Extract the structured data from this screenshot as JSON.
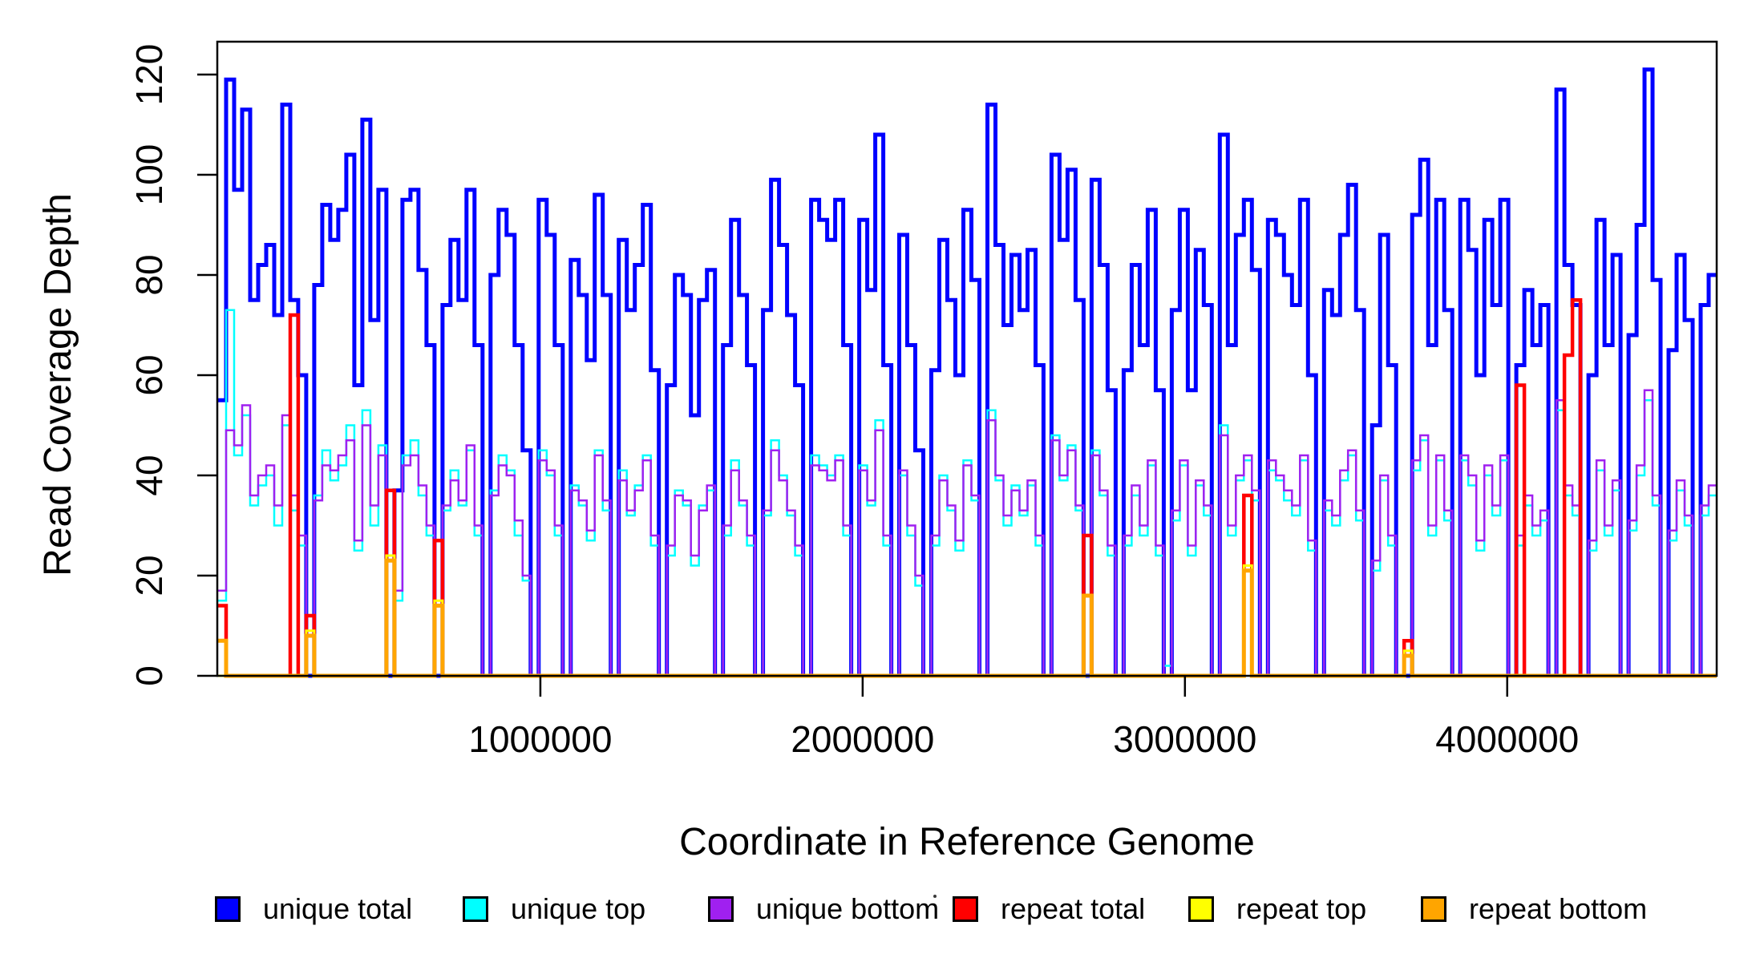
{
  "figure": {
    "background": "#ffffff",
    "text_color": "#000000"
  },
  "y_axis": {
    "title": "Read Coverage Depth",
    "ticks": [
      0,
      20,
      40,
      60,
      80,
      100,
      120
    ],
    "range": [
      0,
      126
    ]
  },
  "x_axis": {
    "title": "Coordinate in Reference Genome",
    "ticks": [
      1000000,
      2000000,
      3000000,
      4000000
    ],
    "tick_labels": [
      "1000000",
      "2000000",
      "3000000",
      "4000000"
    ],
    "range": [
      0,
      4650000
    ]
  },
  "legend": {
    "items": [
      {
        "label": "unique total",
        "color": "#0000FF"
      },
      {
        "label": "unique top",
        "color": "#00FFFF"
      },
      {
        "label": "unique bottom",
        "color": "#A020F0"
      },
      {
        "label": "repeat total",
        "color": "#FF0000"
      },
      {
        "label": "repeat top",
        "color": "#FFFF00"
      },
      {
        "label": "repeat bottom",
        "color": "#FFA500"
      }
    ]
  },
  "chart_data": {
    "type": "line",
    "step": true,
    "grid": false,
    "n_bins": 187,
    "bin_size": 24866,
    "x_start": 0,
    "xlabel": "Coordinate in Reference Genome",
    "ylabel": "Read Coverage Depth",
    "ylim": [
      0,
      126
    ],
    "xlim": [
      0,
      4650000
    ],
    "series": [
      {
        "name": "unique total",
        "color": "#0000FF",
        "lwd": 5,
        "values": [
          55,
          119,
          97,
          113,
          75,
          82,
          86,
          72,
          114,
          75,
          60,
          0,
          78,
          94,
          87,
          93,
          104,
          58,
          111,
          71,
          97,
          0,
          37,
          95,
          97,
          81,
          66,
          0,
          74,
          87,
          75,
          97,
          66,
          0,
          80,
          93,
          88,
          66,
          45,
          0,
          95,
          88,
          66,
          0,
          83,
          76,
          63,
          96,
          76,
          0,
          87,
          73,
          82,
          94,
          61,
          0,
          58,
          80,
          76,
          52,
          75,
          81,
          0,
          66,
          91,
          76,
          62,
          0,
          73,
          99,
          86,
          72,
          58,
          0,
          95,
          91,
          87,
          95,
          66,
          0,
          91,
          77,
          108,
          62,
          0,
          88,
          66,
          45,
          0,
          61,
          87,
          75,
          60,
          93,
          79,
          0,
          114,
          86,
          70,
          84,
          73,
          85,
          62,
          0,
          104,
          87,
          101,
          75,
          0,
          99,
          82,
          57,
          0,
          61,
          82,
          66,
          93,
          57,
          0,
          73,
          93,
          57,
          85,
          74,
          0,
          108,
          66,
          88,
          95,
          81,
          0,
          91,
          88,
          80,
          74,
          95,
          60,
          0,
          77,
          72,
          88,
          98,
          73,
          0,
          50,
          88,
          62,
          0,
          0,
          92,
          103,
          66,
          95,
          73,
          0,
          95,
          85,
          60,
          91,
          74,
          95,
          0,
          62,
          77,
          66,
          74,
          0,
          117,
          82,
          74,
          0,
          60,
          91,
          66,
          84,
          0,
          68,
          90,
          121,
          79,
          0,
          65,
          84,
          71,
          0,
          74,
          80
        ]
      },
      {
        "name": "unique top",
        "color": "#00FFFF",
        "lwd": 2.5,
        "values": [
          15,
          73,
          44,
          52,
          34,
          38,
          40,
          30,
          50,
          33,
          26,
          0,
          36,
          45,
          39,
          42,
          50,
          25,
          53,
          30,
          46,
          0,
          15,
          44,
          47,
          36,
          28,
          0,
          33,
          41,
          34,
          45,
          28,
          0,
          37,
          44,
          41,
          28,
          19,
          0,
          45,
          40,
          28,
          0,
          38,
          34,
          27,
          45,
          33,
          0,
          41,
          32,
          38,
          44,
          26,
          0,
          24,
          37,
          34,
          22,
          34,
          37,
          0,
          28,
          43,
          34,
          26,
          0,
          32,
          47,
          40,
          32,
          24,
          0,
          44,
          42,
          40,
          44,
          28,
          0,
          42,
          34,
          51,
          26,
          0,
          40,
          28,
          18,
          0,
          26,
          40,
          33,
          25,
          43,
          35,
          0,
          53,
          39,
          30,
          38,
          32,
          38,
          26,
          0,
          48,
          39,
          46,
          33,
          0,
          45,
          36,
          24,
          0,
          26,
          36,
          28,
          42,
          24,
          2,
          31,
          42,
          24,
          38,
          32,
          0,
          50,
          28,
          39,
          43,
          35,
          0,
          41,
          39,
          35,
          32,
          43,
          25,
          0,
          33,
          30,
          39,
          44,
          31,
          0,
          21,
          39,
          26,
          0,
          0,
          41,
          47,
          28,
          43,
          31,
          0,
          43,
          38,
          25,
          40,
          32,
          43,
          0,
          26,
          34,
          28,
          31,
          0,
          53,
          36,
          32,
          0,
          25,
          41,
          28,
          37,
          0,
          29,
          40,
          55,
          34,
          0,
          27,
          37,
          30,
          0,
          32,
          36
        ]
      },
      {
        "name": "unique bottom",
        "color": "#A020F0",
        "lwd": 2.5,
        "values": [
          17,
          49,
          46,
          54,
          36,
          40,
          42,
          34,
          52,
          36,
          28,
          0,
          35,
          42,
          41,
          44,
          47,
          27,
          50,
          34,
          44,
          0,
          17,
          42,
          44,
          38,
          30,
          0,
          34,
          39,
          35,
          46,
          30,
          0,
          36,
          42,
          40,
          31,
          20,
          0,
          43,
          41,
          30,
          0,
          37,
          35,
          29,
          44,
          35,
          0,
          39,
          33,
          37,
          43,
          28,
          0,
          26,
          36,
          35,
          24,
          33,
          38,
          0,
          30,
          41,
          35,
          28,
          0,
          33,
          45,
          39,
          33,
          26,
          0,
          42,
          41,
          39,
          43,
          30,
          0,
          41,
          35,
          49,
          28,
          0,
          41,
          30,
          20,
          0,
          28,
          39,
          34,
          27,
          42,
          36,
          0,
          51,
          40,
          32,
          37,
          33,
          39,
          28,
          0,
          47,
          40,
          45,
          34,
          0,
          44,
          37,
          26,
          0,
          28,
          38,
          30,
          43,
          26,
          0,
          33,
          43,
          26,
          39,
          34,
          0,
          48,
          30,
          40,
          44,
          37,
          0,
          43,
          40,
          37,
          34,
          44,
          27,
          0,
          35,
          32,
          41,
          45,
          33,
          0,
          23,
          40,
          28,
          0,
          0,
          43,
          48,
          30,
          44,
          33,
          0,
          44,
          40,
          27,
          42,
          34,
          44,
          0,
          28,
          36,
          30,
          33,
          0,
          55,
          38,
          34,
          0,
          27,
          43,
          30,
          39,
          0,
          31,
          42,
          57,
          36,
          0,
          29,
          39,
          32,
          0,
          34,
          38
        ]
      },
      {
        "name": "repeat total",
        "color": "#FF0000",
        "lwd": 4.5,
        "spikes": [
          {
            "bin": 0,
            "value": 14
          },
          {
            "bin": 9,
            "value": 72
          },
          {
            "bin": 11,
            "value": 12
          },
          {
            "bin": 21,
            "value": 37
          },
          {
            "bin": 27,
            "value": 27
          },
          {
            "bin": 108,
            "value": 28
          },
          {
            "bin": 128,
            "value": 36
          },
          {
            "bin": 148,
            "value": 7
          },
          {
            "bin": 162,
            "value": 58
          },
          {
            "bin": 168,
            "value": 64
          },
          {
            "bin": 169,
            "value": 75
          }
        ]
      },
      {
        "name": "repeat top",
        "color": "#FFFF00",
        "lwd": 3,
        "spikes": [
          {
            "bin": 11,
            "value": 9
          },
          {
            "bin": 21,
            "value": 24
          },
          {
            "bin": 27,
            "value": 15
          },
          {
            "bin": 128,
            "value": 22
          },
          {
            "bin": 148,
            "value": 5
          }
        ]
      },
      {
        "name": "repeat bottom",
        "color": "#FFA500",
        "lwd": 5,
        "spikes": [
          {
            "bin": 0,
            "value": 7
          },
          {
            "bin": 11,
            "value": 8
          },
          {
            "bin": 21,
            "value": 23
          },
          {
            "bin": 27,
            "value": 14
          },
          {
            "bin": 108,
            "value": 16
          },
          {
            "bin": 128,
            "value": 21
          },
          {
            "bin": 148,
            "value": 4
          }
        ]
      }
    ]
  }
}
